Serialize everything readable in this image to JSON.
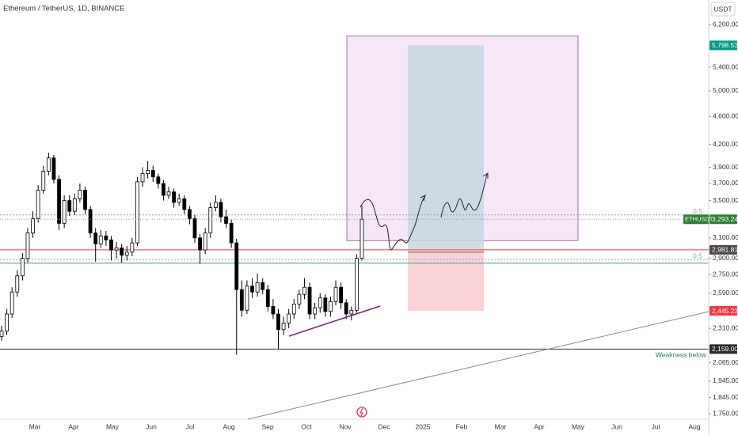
{
  "chart_data": {
    "type": "candlestick",
    "title": "Ethereum / TetherUS, 1D, BINANCE",
    "currency": "USDT",
    "symbol": "ETHUSDT",
    "last_price_label": "3,293.24",
    "last_price_color": "#2e7d32",
    "up_color": "#ffffff",
    "down_color": "#000000",
    "log_scale": true,
    "ylim": [
      1719,
      6720
    ],
    "yticks": [
      {
        "value": 1750,
        "label": "1,750.00"
      },
      {
        "value": 1845,
        "label": "1,845.00"
      },
      {
        "value": 1945,
        "label": "1,945.00"
      },
      {
        "value": 2065,
        "label": "2,065.00"
      },
      {
        "value": 2310,
        "label": "2,310.00"
      },
      {
        "value": 2590,
        "label": "2,590.00"
      },
      {
        "value": 2750,
        "label": "2,750.00"
      },
      {
        "value": 2900,
        "label": "2,900.00"
      },
      {
        "value": 3100,
        "label": "3,100.00"
      },
      {
        "value": 3500,
        "label": "3,500.00"
      },
      {
        "value": 3700,
        "label": "3,700.00"
      },
      {
        "value": 3900,
        "label": "3,900.00"
      },
      {
        "value": 4200,
        "label": "4,200.00"
      },
      {
        "value": 4600,
        "label": "4,600.00"
      },
      {
        "value": 5000,
        "label": "5,000.00"
      },
      {
        "value": 5400,
        "label": "5,400.00"
      },
      {
        "value": 6200,
        "label": "6,200.00"
      }
    ],
    "xticks": [
      "Mar",
      "Apr",
      "May",
      "Jun",
      "Jul",
      "Aug",
      "Sep",
      "Oct",
      "Nov",
      "Dec",
      "2025",
      "Feb",
      "Mar",
      "Apr",
      "May",
      "Jun",
      "Jul",
      "Aug"
    ],
    "ohlc": [
      [
        2250,
        2330,
        2220,
        2290
      ],
      [
        2290,
        2460,
        2260,
        2420
      ],
      [
        2420,
        2640,
        2390,
        2600
      ],
      [
        2600,
        2790,
        2560,
        2740
      ],
      [
        2740,
        2950,
        2700,
        2900
      ],
      [
        2900,
        3200,
        2860,
        3150
      ],
      [
        3150,
        3380,
        3100,
        3300
      ],
      [
        3300,
        3680,
        3260,
        3620
      ],
      [
        3620,
        3920,
        3580,
        3850
      ],
      [
        3850,
        4090,
        3800,
        4020
      ],
      [
        4020,
        4060,
        3700,
        3750
      ],
      [
        3750,
        3800,
        3180,
        3250
      ],
      [
        3250,
        3560,
        3200,
        3500
      ],
      [
        3500,
        3560,
        3330,
        3380
      ],
      [
        3380,
        3580,
        3340,
        3520
      ],
      [
        3520,
        3700,
        3480,
        3620
      ],
      [
        3620,
        3660,
        3350,
        3400
      ],
      [
        3400,
        3440,
        3100,
        3150
      ],
      [
        3150,
        3200,
        2870,
        3040
      ],
      [
        3040,
        3180,
        3000,
        3120
      ],
      [
        3120,
        3170,
        3020,
        3080
      ],
      [
        3080,
        3120,
        2880,
        2980
      ],
      [
        2980,
        3060,
        2900,
        3000
      ],
      [
        3000,
        3040,
        2860,
        2930
      ],
      [
        2930,
        3020,
        2880,
        2960
      ],
      [
        2960,
        3100,
        2920,
        3050
      ],
      [
        3050,
        3780,
        3020,
        3720
      ],
      [
        3720,
        3900,
        3660,
        3820
      ],
      [
        3820,
        3980,
        3760,
        3860
      ],
      [
        3860,
        3920,
        3720,
        3780
      ],
      [
        3780,
        3820,
        3640,
        3700
      ],
      [
        3700,
        3740,
        3500,
        3560
      ],
      [
        3560,
        3660,
        3520,
        3600
      ],
      [
        3600,
        3640,
        3420,
        3480
      ],
      [
        3480,
        3580,
        3440,
        3520
      ],
      [
        3520,
        3560,
        3350,
        3400
      ],
      [
        3400,
        3440,
        3240,
        3300
      ],
      [
        3300,
        3340,
        3050,
        3100
      ],
      [
        3100,
        3140,
        2850,
        2980
      ],
      [
        2980,
        3200,
        2940,
        3150
      ],
      [
        3150,
        3480,
        3100,
        3420
      ],
      [
        3420,
        3560,
        3380,
        3480
      ],
      [
        3480,
        3520,
        3260,
        3320
      ],
      [
        3320,
        3400,
        3200,
        3250
      ],
      [
        3250,
        3290,
        3000,
        3050
      ],
      [
        3050,
        3090,
        2120,
        2620
      ],
      [
        2620,
        2700,
        2400,
        2450
      ],
      [
        2450,
        2700,
        2420,
        2650
      ],
      [
        2650,
        2720,
        2550,
        2600
      ],
      [
        2600,
        2760,
        2560,
        2680
      ],
      [
        2680,
        2720,
        2580,
        2620
      ],
      [
        2620,
        2660,
        2440,
        2480
      ],
      [
        2480,
        2540,
        2380,
        2420
      ],
      [
        2420,
        2460,
        2160,
        2300
      ],
      [
        2300,
        2400,
        2260,
        2350
      ],
      [
        2350,
        2460,
        2310,
        2420
      ],
      [
        2420,
        2540,
        2380,
        2500
      ],
      [
        2500,
        2620,
        2460,
        2580
      ],
      [
        2580,
        2720,
        2540,
        2640
      ],
      [
        2640,
        2680,
        2380,
        2420
      ],
      [
        2420,
        2510,
        2380,
        2470
      ],
      [
        2470,
        2590,
        2430,
        2550
      ],
      [
        2550,
        2580,
        2400,
        2440
      ],
      [
        2440,
        2560,
        2400,
        2520
      ],
      [
        2520,
        2700,
        2490,
        2640
      ],
      [
        2640,
        2680,
        2460,
        2510
      ],
      [
        2510,
        2540,
        2380,
        2420
      ],
      [
        2420,
        2480,
        2370,
        2450
      ],
      [
        2450,
        2940,
        2430,
        2900
      ],
      [
        2900,
        3440,
        2880,
        3293.24
      ]
    ],
    "levels": [
      {
        "value": 3340,
        "color": "#9e9e9e",
        "style": "dotted",
        "label": "0.5"
      },
      {
        "value": 2890,
        "color": "#9e9e9e",
        "style": "dotted",
        "label": "0.5"
      },
      {
        "value": 2855,
        "color": "#26a69a",
        "style": "solid"
      },
      {
        "value": 2981.81,
        "color": "#f23645",
        "style": "solid",
        "tag_label": "2,981.81",
        "tag_color": "#4a4a4a"
      },
      {
        "value": 2159,
        "color": "#333333",
        "style": "solid",
        "tag_label": "2,159.00",
        "tag_color": "#2a2a2a",
        "note": "Weakness below",
        "note_color": "#2e7d4f"
      }
    ],
    "rectangle": {
      "top": 5980,
      "bottom": 3072,
      "color": "#f3e3f5",
      "border": "#9c6fa8"
    },
    "position": {
      "entry": 2981.81,
      "target": 5798.53,
      "target_label": "5,798.53",
      "target_color": "#089981",
      "stop": 2445.23,
      "stop_label": "2,445.23",
      "stop_color": "#f23645"
    }
  }
}
